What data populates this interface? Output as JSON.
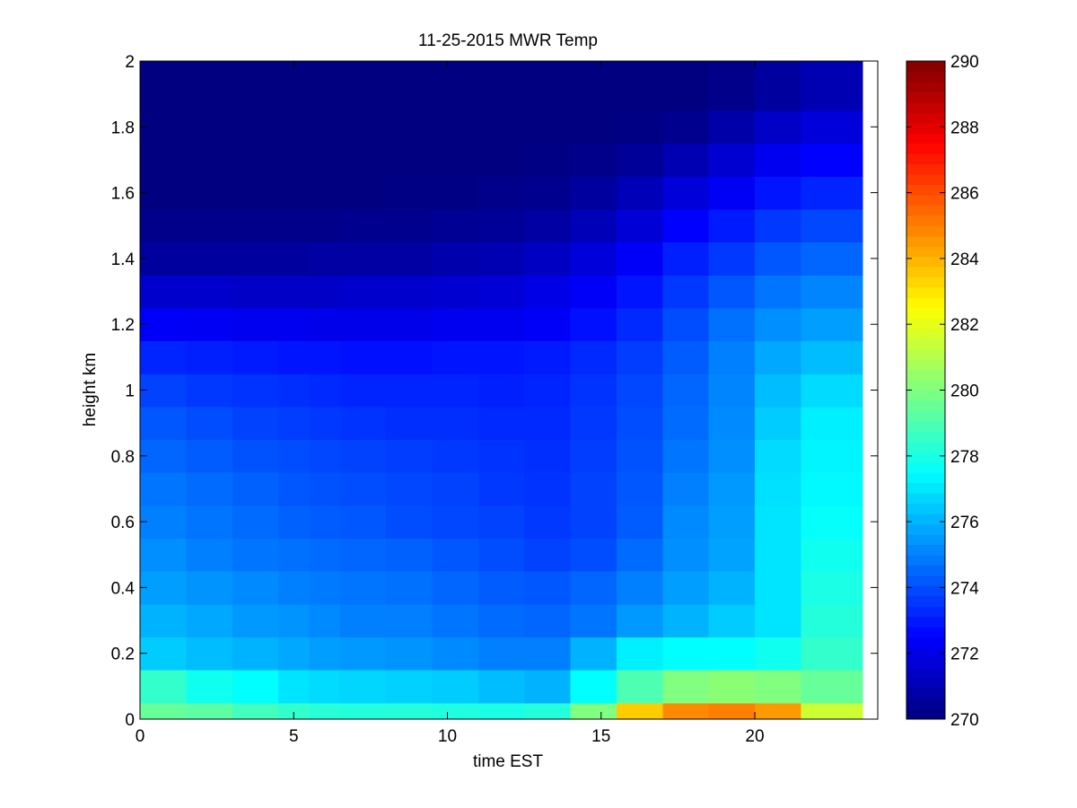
{
  "chart_data": {
    "type": "heatmap",
    "title": "11-25-2015 MWR Temp",
    "xlabel": "time EST",
    "ylabel": "height km",
    "xlim": [
      0,
      24
    ],
    "ylim": [
      0,
      2
    ],
    "xticks": [
      0,
      5,
      10,
      15,
      20
    ],
    "yticks": [
      0,
      0.2,
      0.4,
      0.6,
      0.8,
      1,
      1.2,
      1.4,
      1.6,
      1.8,
      2
    ],
    "colorbar": {
      "clim": [
        270,
        290
      ],
      "ticks": [
        270,
        272,
        274,
        276,
        278,
        280,
        282,
        284,
        286,
        288,
        290
      ],
      "colormap": "jet"
    },
    "grid": false,
    "x_edges": [
      0,
      1.5,
      3,
      4.5,
      5.5,
      6.5,
      8,
      9.5,
      11,
      12.5,
      14,
      15.5,
      17,
      18.5,
      20,
      21.5,
      23.5
    ],
    "y_edges": [
      0,
      0.05,
      0.15,
      0.25,
      0.35,
      0.45,
      0.55,
      0.65,
      0.75,
      0.85,
      0.95,
      1.05,
      1.15,
      1.25,
      1.35,
      1.45,
      1.55,
      1.65,
      1.75,
      1.85,
      2.0
    ],
    "values": [
      [
        279.5,
        279.3,
        278.8,
        278.5,
        278.3,
        278.2,
        278.2,
        278.1,
        278.0,
        278.2,
        280.0,
        283.5,
        284.8,
        285.0,
        284.5,
        281.5
      ],
      [
        278.5,
        277.8,
        277.5,
        277.0,
        276.8,
        276.7,
        276.6,
        276.5,
        276.2,
        276.0,
        277.5,
        279.0,
        280.0,
        280.2,
        280.0,
        279.5
      ],
      [
        276.5,
        276.2,
        276.0,
        275.8,
        275.6,
        275.5,
        275.4,
        275.2,
        275.0,
        275.0,
        276.0,
        277.2,
        277.5,
        277.5,
        277.8,
        278.5
      ],
      [
        276.0,
        275.8,
        275.5,
        275.4,
        275.2,
        275.0,
        275.0,
        274.8,
        274.6,
        274.5,
        274.8,
        275.5,
        276.0,
        276.5,
        277.0,
        278.2
      ],
      [
        275.6,
        275.4,
        275.2,
        275.0,
        274.9,
        274.8,
        274.7,
        274.5,
        274.3,
        274.2,
        274.5,
        275.0,
        275.6,
        276.0,
        277.0,
        278.0
      ],
      [
        275.3,
        275.0,
        274.8,
        274.7,
        274.6,
        274.5,
        274.4,
        274.2,
        274.0,
        273.8,
        274.0,
        274.6,
        275.3,
        275.7,
        277.0,
        277.8
      ],
      [
        275.0,
        274.8,
        274.6,
        274.4,
        274.3,
        274.2,
        274.0,
        273.9,
        273.8,
        273.6,
        273.8,
        274.3,
        275.2,
        275.6,
        277.0,
        277.6
      ],
      [
        274.8,
        274.6,
        274.4,
        274.2,
        274.1,
        274.0,
        273.9,
        273.8,
        273.6,
        273.5,
        273.8,
        274.2,
        275.0,
        275.5,
        276.9,
        277.4
      ],
      [
        274.5,
        274.3,
        274.1,
        274.0,
        273.9,
        273.8,
        273.7,
        273.6,
        273.5,
        273.4,
        273.7,
        274.1,
        274.8,
        275.3,
        276.8,
        277.3
      ],
      [
        274.2,
        274.0,
        273.8,
        273.7,
        273.6,
        273.5,
        273.4,
        273.4,
        273.3,
        273.3,
        273.6,
        274.0,
        274.6,
        275.2,
        276.5,
        277.2
      ],
      [
        273.8,
        273.6,
        273.5,
        273.4,
        273.3,
        273.2,
        273.2,
        273.2,
        273.1,
        273.2,
        273.5,
        273.9,
        274.5,
        275.1,
        276.2,
        276.8
      ],
      [
        273.2,
        273.1,
        273.0,
        272.9,
        272.9,
        272.8,
        272.8,
        272.9,
        272.9,
        273.0,
        273.3,
        273.7,
        274.3,
        275.0,
        275.8,
        276.2
      ],
      [
        272.4,
        272.3,
        272.2,
        272.2,
        272.1,
        272.1,
        272.1,
        272.2,
        272.2,
        272.4,
        272.8,
        273.3,
        274.0,
        274.7,
        275.3,
        275.6
      ],
      [
        271.5,
        271.5,
        271.4,
        271.4,
        271.4,
        271.5,
        271.5,
        271.6,
        271.7,
        272.0,
        272.4,
        272.9,
        273.6,
        274.2,
        274.8,
        275.1
      ],
      [
        270.6,
        270.6,
        270.6,
        270.6,
        270.7,
        270.7,
        270.7,
        270.9,
        271.0,
        271.3,
        271.8,
        272.4,
        273.1,
        273.6,
        274.2,
        274.5
      ],
      [
        270.2,
        270.2,
        270.2,
        270.2,
        270.2,
        270.3,
        270.3,
        270.4,
        270.5,
        270.7,
        271.1,
        271.7,
        272.5,
        273.0,
        273.6,
        273.9
      ],
      [
        270.0,
        270.0,
        270.0,
        270.0,
        270.0,
        270.0,
        270.1,
        270.1,
        270.2,
        270.3,
        270.6,
        271.1,
        271.8,
        272.3,
        272.9,
        273.2
      ],
      [
        270.0,
        270.0,
        270.0,
        270.0,
        270.0,
        270.0,
        270.0,
        270.0,
        270.0,
        270.1,
        270.2,
        270.5,
        271.0,
        271.6,
        272.2,
        272.5
      ],
      [
        270.0,
        270.0,
        270.0,
        270.0,
        270.0,
        270.0,
        270.0,
        270.0,
        270.0,
        270.0,
        270.0,
        270.1,
        270.3,
        270.8,
        271.4,
        271.8
      ],
      [
        270.0,
        270.0,
        270.0,
        270.0,
        270.0,
        270.0,
        270.0,
        270.0,
        270.0,
        270.0,
        270.0,
        270.0,
        270.0,
        270.2,
        270.6,
        271.0
      ]
    ]
  }
}
